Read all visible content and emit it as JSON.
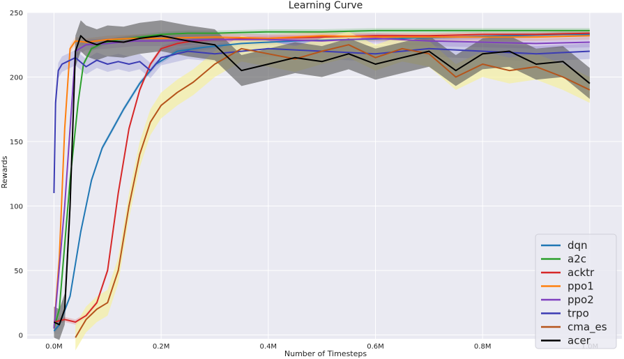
{
  "chart_data": {
    "type": "line",
    "title": "Learning Curve",
    "xlabel": "Number of Timesteps",
    "ylabel": "Rewards",
    "xlim": [
      -50000,
      1060000
    ],
    "ylim": [
      -3,
      250
    ],
    "xticks": [
      0,
      200000,
      400000,
      600000,
      800000,
      1000000
    ],
    "xtick_labels": [
      "0.0M",
      "0.2M",
      "0.4M",
      "0.6M",
      "0.8M",
      "1.0M"
    ],
    "yticks": [
      0,
      50,
      100,
      150,
      200,
      250
    ],
    "ytick_labels": [
      "0",
      "50",
      "100",
      "150",
      "200",
      "250"
    ],
    "grid": true,
    "background": "#eaeaf2",
    "legend_position": "lower-right",
    "series": [
      {
        "name": "dqn",
        "color": "#1f77b4",
        "x": [
          0,
          10000,
          30000,
          50000,
          70000,
          90000,
          110000,
          130000,
          160000,
          190000,
          230000,
          280000,
          350000,
          450000,
          550000,
          650000,
          750000,
          850000,
          950000,
          1000000
        ],
        "y": [
          3,
          8,
          30,
          80,
          120,
          145,
          160,
          175,
          195,
          210,
          220,
          223,
          226,
          228,
          229,
          230,
          231,
          232,
          233,
          233
        ],
        "band": 2
      },
      {
        "name": "a2c",
        "color": "#2ca02c",
        "x": [
          0,
          10000,
          30000,
          45000,
          55000,
          70000,
          90000,
          120000,
          160000,
          200000,
          250000,
          300000,
          400000,
          500000,
          600000,
          700000,
          800000,
          900000,
          1000000
        ],
        "y": [
          5,
          20,
          120,
          180,
          210,
          222,
          226,
          229,
          231,
          233,
          234,
          234,
          235,
          235,
          236,
          236,
          236,
          236,
          236
        ],
        "band": 2
      },
      {
        "name": "acktr",
        "color": "#d62728",
        "x": [
          0,
          20000,
          40000,
          60000,
          80000,
          100000,
          120000,
          140000,
          160000,
          180000,
          200000,
          230000,
          260000,
          300000,
          400000,
          500000,
          600000,
          700000,
          800000,
          900000,
          1000000
        ],
        "y": [
          10,
          12,
          10,
          15,
          25,
          50,
          110,
          160,
          190,
          210,
          222,
          226,
          228,
          229,
          230,
          231,
          232,
          232,
          233,
          233,
          234
        ],
        "band": 2
      },
      {
        "name": "ppo1",
        "color": "#ff7f0e",
        "x": [
          0,
          10000,
          20000,
          30000,
          40000,
          60000,
          100000,
          150000,
          200000,
          300000,
          400000,
          500000,
          600000,
          700000,
          800000,
          900000,
          1000000
        ],
        "y": [
          5,
          60,
          160,
          222,
          228,
          227,
          229,
          230,
          230,
          231,
          230,
          232,
          231,
          231,
          231,
          231,
          232
        ],
        "band": 3
      },
      {
        "name": "ppo2",
        "color": "#7f3fbf",
        "x": [
          0,
          20000,
          40000,
          60000,
          100000,
          150000,
          200000,
          300000,
          400000,
          500000,
          600000,
          700000,
          800000,
          900000,
          1000000
        ],
        "y": [
          5,
          100,
          220,
          225,
          226,
          228,
          228,
          229,
          229,
          228,
          230,
          228,
          227,
          226,
          227
        ],
        "band": 4
      },
      {
        "name": "trpo",
        "color": "#3b3bb3",
        "x": [
          0,
          3000,
          8000,
          15000,
          25000,
          40000,
          60000,
          80000,
          100000,
          120000,
          140000,
          160000,
          180000,
          200000,
          250000,
          300000,
          400000,
          500000,
          600000,
          700000,
          800000,
          900000,
          1000000
        ],
        "y": [
          110,
          180,
          205,
          210,
          212,
          215,
          208,
          213,
          210,
          212,
          210,
          212,
          205,
          215,
          220,
          218,
          222,
          220,
          218,
          222,
          220,
          218,
          220
        ],
        "band": 6
      },
      {
        "name": "cma_es",
        "color": "#b5541b",
        "x": [
          40000,
          50000,
          60000,
          80000,
          100000,
          120000,
          140000,
          160000,
          180000,
          200000,
          230000,
          260000,
          300000,
          350000,
          400000,
          450000,
          500000,
          550000,
          600000,
          650000,
          700000,
          750000,
          800000,
          850000,
          900000,
          950000,
          1000000
        ],
        "y": [
          -2,
          5,
          12,
          20,
          25,
          50,
          100,
          140,
          165,
          178,
          188,
          196,
          210,
          222,
          218,
          214,
          220,
          225,
          215,
          222,
          218,
          200,
          210,
          205,
          208,
          200,
          190
        ],
        "band": 10
      },
      {
        "name": "acer",
        "color": "#000000",
        "x": [
          0,
          10000,
          20000,
          30000,
          40000,
          50000,
          60000,
          80000,
          100000,
          130000,
          160000,
          200000,
          250000,
          300000,
          350000,
          400000,
          450000,
          500000,
          550000,
          600000,
          650000,
          700000,
          750000,
          800000,
          850000,
          900000,
          950000,
          1000000
        ],
        "y": [
          10,
          8,
          20,
          100,
          220,
          232,
          228,
          225,
          228,
          227,
          230,
          232,
          228,
          225,
          205,
          210,
          215,
          212,
          218,
          210,
          215,
          220,
          205,
          218,
          220,
          210,
          212,
          195
        ],
        "band": 12
      }
    ]
  }
}
